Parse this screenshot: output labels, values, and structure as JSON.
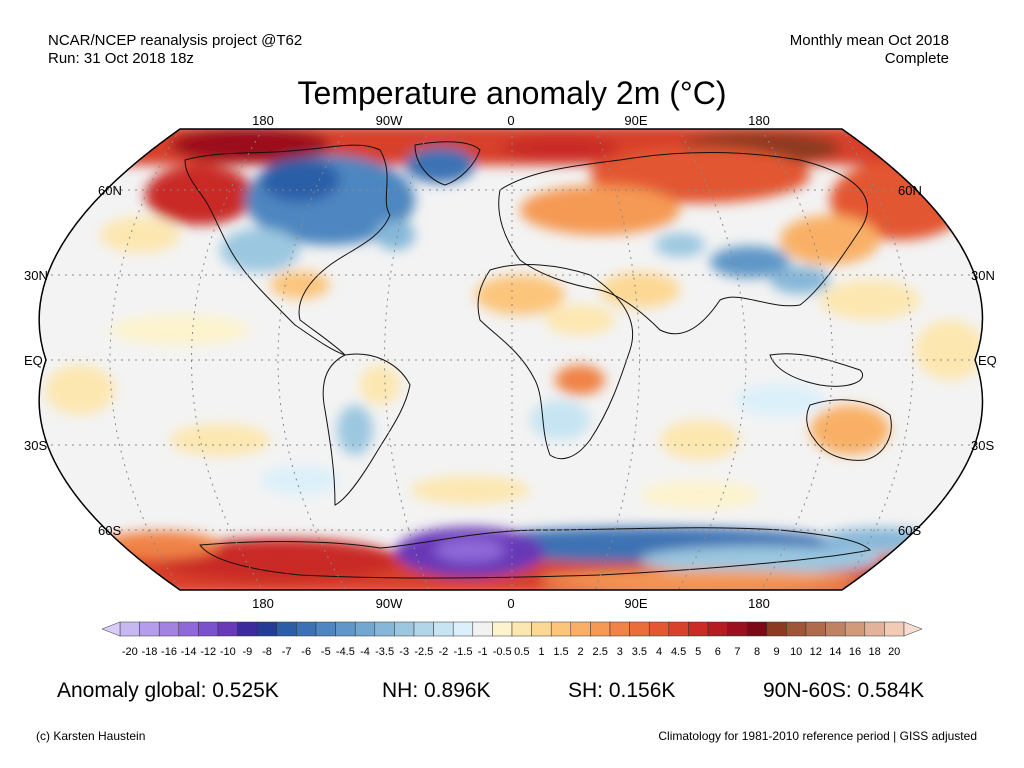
{
  "header": {
    "source_line1": "NCAR/NCEP reanalysis project @T62",
    "source_line2": "Run: 31 Oct 2018 18z",
    "period_line1": "Monthly mean Oct 2018",
    "period_line2": "Complete"
  },
  "title": "Temperature anomaly 2m (°C)",
  "lon_labels": [
    "180",
    "90W",
    "0",
    "90E",
    "180"
  ],
  "lat_labels": [
    "60N",
    "30N",
    "EQ",
    "30S",
    "60S"
  ],
  "colorbar": {
    "labels": [
      "-20",
      "-18",
      "-16",
      "-14",
      "-12",
      "-10",
      "-9",
      "-8",
      "-7",
      "-6",
      "-5",
      "-4.5",
      "-4",
      "-3.5",
      "-3",
      "-2.5",
      "-2",
      "-1.5",
      "-1",
      "-0.5",
      "0.5",
      "1",
      "1.5",
      "2",
      "2.5",
      "3",
      "3.5",
      "4",
      "4.5",
      "5",
      "6",
      "7",
      "8",
      "9",
      "10",
      "12",
      "14",
      "16",
      "18",
      "20"
    ],
    "colors": [
      "#c7b8f2",
      "#b59deb",
      "#a383e2",
      "#8f69d8",
      "#7b51cc",
      "#6939b8",
      "#3d2a9c",
      "#243c98",
      "#2c5ea8",
      "#3c72b4",
      "#4d86c0",
      "#5f97c8",
      "#71a7d0",
      "#86b7d8",
      "#9bc7e0",
      "#b1d6ea",
      "#c6e4f2",
      "#dbf0fa",
      "#f2f2f2",
      "#fdf3cc",
      "#fde7b0",
      "#fdd894",
      "#fcc57b",
      "#f9b066",
      "#f59a55",
      "#f08347",
      "#ea6d3b",
      "#e35733",
      "#d8412c",
      "#c92b25",
      "#b51b20",
      "#9c0f1c",
      "#7a0a16",
      "#8c3a22",
      "#a05538",
      "#b06b4c",
      "#c08262",
      "#d19a7a",
      "#e2b39a",
      "#f1cbb6"
    ]
  },
  "stats": {
    "global": "Anomaly global: 0.525K",
    "nh": "NH: 0.896K",
    "sh": "SH: 0.156K",
    "arctic": "90N-60S: 0.584K"
  },
  "footer": {
    "credit": "(c) Karsten Haustein",
    "note": "Climatology for 1981-2010 reference period | GISS adjusted"
  }
}
